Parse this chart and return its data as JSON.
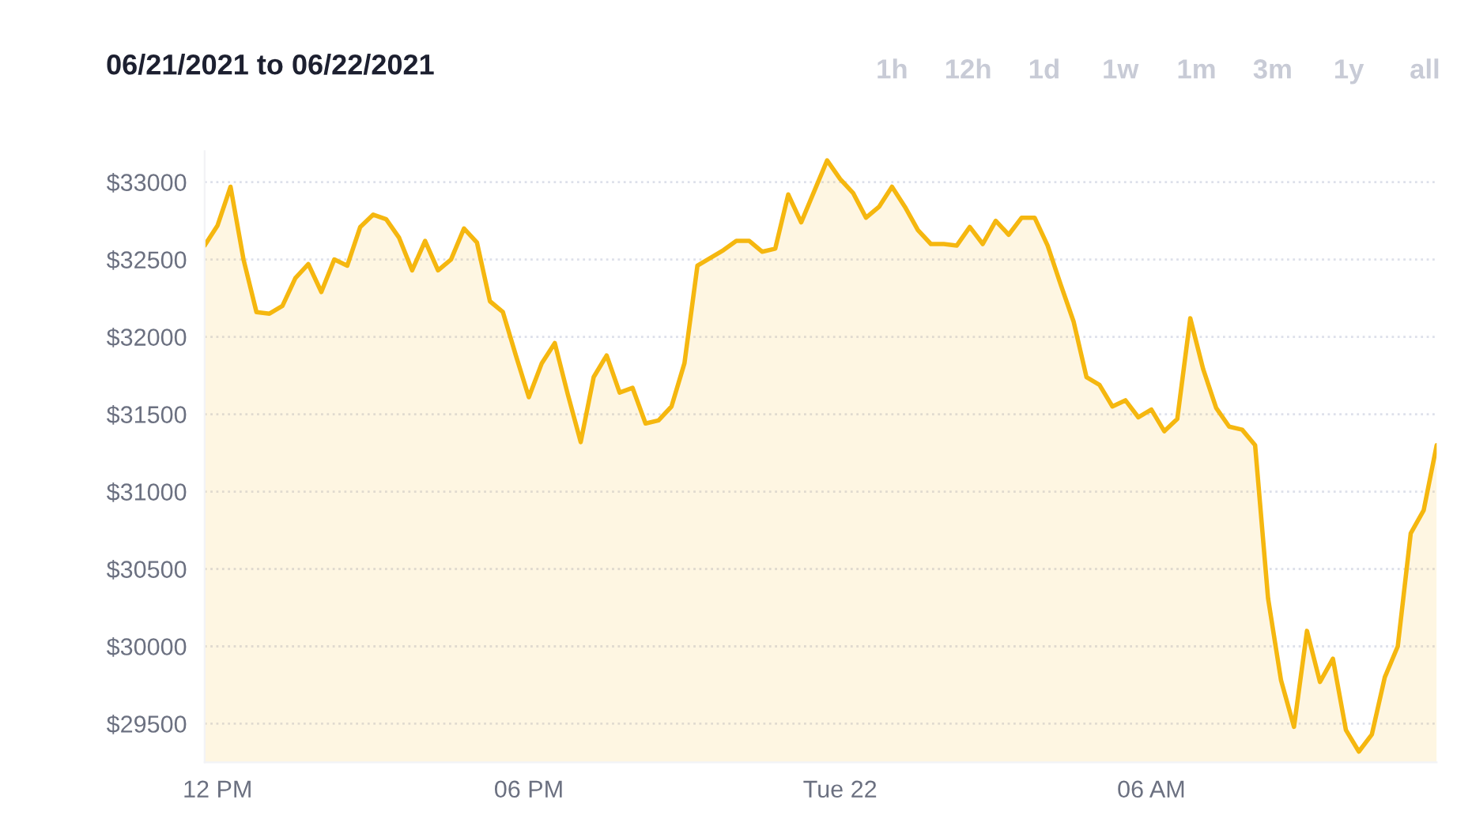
{
  "chart_data": {
    "type": "area",
    "title": "06/21/2021 to 06/22/2021",
    "annotations": [
      "1h",
      "12h",
      "1d",
      "1w",
      "1m",
      "3m",
      "1y",
      "all"
    ],
    "x": [
      "2021-06-21T11:45",
      "2021-06-21T12:00",
      "2021-06-21T12:15",
      "2021-06-21T12:30",
      "2021-06-21T12:45",
      "2021-06-21T13:00",
      "2021-06-21T13:15",
      "2021-06-21T13:30",
      "2021-06-21T13:45",
      "2021-06-21T14:00",
      "2021-06-21T14:15",
      "2021-06-21T14:30",
      "2021-06-21T14:45",
      "2021-06-21T15:00",
      "2021-06-21T15:15",
      "2021-06-21T15:30",
      "2021-06-21T15:45",
      "2021-06-21T16:00",
      "2021-06-21T16:15",
      "2021-06-21T16:30",
      "2021-06-21T16:45",
      "2021-06-21T17:00",
      "2021-06-21T17:15",
      "2021-06-21T17:30",
      "2021-06-21T17:45",
      "2021-06-21T18:00",
      "2021-06-21T18:15",
      "2021-06-21T18:30",
      "2021-06-21T18:45",
      "2021-06-21T19:00",
      "2021-06-21T19:15",
      "2021-06-21T19:30",
      "2021-06-21T19:45",
      "2021-06-21T20:00",
      "2021-06-21T20:15",
      "2021-06-21T20:30",
      "2021-06-21T20:45",
      "2021-06-21T21:00",
      "2021-06-21T21:15",
      "2021-06-21T21:30",
      "2021-06-21T21:45",
      "2021-06-21T22:00",
      "2021-06-21T22:15",
      "2021-06-21T22:30",
      "2021-06-21T22:45",
      "2021-06-21T23:00",
      "2021-06-21T23:15",
      "2021-06-21T23:30",
      "2021-06-21T23:45",
      "2021-06-22T00:00",
      "2021-06-22T00:15",
      "2021-06-22T00:30",
      "2021-06-22T00:45",
      "2021-06-22T01:00",
      "2021-06-22T01:15",
      "2021-06-22T01:30",
      "2021-06-22T01:45",
      "2021-06-22T02:00",
      "2021-06-22T02:15",
      "2021-06-22T02:30",
      "2021-06-22T02:45",
      "2021-06-22T03:00",
      "2021-06-22T03:15",
      "2021-06-22T03:30",
      "2021-06-22T03:45",
      "2021-06-22T04:00",
      "2021-06-22T04:15",
      "2021-06-22T04:30",
      "2021-06-22T04:45",
      "2021-06-22T05:00",
      "2021-06-22T05:15",
      "2021-06-22T05:30",
      "2021-06-22T05:45",
      "2021-06-22T06:00",
      "2021-06-22T06:15",
      "2021-06-22T06:30",
      "2021-06-22T06:45",
      "2021-06-22T07:00",
      "2021-06-22T07:15",
      "2021-06-22T07:30",
      "2021-06-22T07:45",
      "2021-06-22T08:00",
      "2021-06-22T08:15",
      "2021-06-22T08:30",
      "2021-06-22T08:45",
      "2021-06-22T09:00",
      "2021-06-22T09:15",
      "2021-06-22T09:30",
      "2021-06-22T09:45",
      "2021-06-22T10:00",
      "2021-06-22T10:15",
      "2021-06-22T10:30",
      "2021-06-22T10:45",
      "2021-06-22T11:00",
      "2021-06-22T11:15",
      "2021-06-22T11:30"
    ],
    "series": [
      {
        "color": "#f5b70f",
        "values": [
          32590,
          32720,
          32970,
          32500,
          32160,
          32150,
          32200,
          32380,
          32470,
          32290,
          32500,
          32460,
          32710,
          32790,
          32760,
          32640,
          32430,
          32620,
          32430,
          32500,
          32700,
          32610,
          32230,
          32160,
          31880,
          31610,
          31830,
          31960,
          31630,
          31320,
          31740,
          31880,
          31640,
          31670,
          31440,
          31460,
          31550,
          31830,
          32460,
          32510,
          32560,
          32620,
          32620,
          32550,
          32570,
          32920,
          32740,
          32940,
          33140,
          33020,
          32930,
          32770,
          32840,
          32970,
          32840,
          32690,
          32600,
          32600,
          32590,
          32710,
          32600,
          32750,
          32660,
          32770,
          32770,
          32590,
          32340,
          32100,
          31740,
          31690,
          31550,
          31590,
          31480,
          31530,
          31390,
          31470,
          32120,
          31790,
          31540,
          31420,
          31400,
          31300,
          30310,
          29780,
          29480,
          30100,
          29770,
          29920,
          29460,
          29320,
          29430,
          29800,
          30000,
          30730,
          30880,
          31300
        ]
      }
    ],
    "xlim": [
      "2021-06-21T11:45",
      "2021-06-22T11:30"
    ],
    "xticks": [
      {
        "value": "2021-06-21T12:00",
        "label": "12 PM"
      },
      {
        "value": "2021-06-21T18:00",
        "label": "06 PM"
      },
      {
        "value": "2021-06-22T00:00",
        "label": "Tue 22"
      },
      {
        "value": "2021-06-22T06:00",
        "label": "06 AM"
      }
    ],
    "ylim": [
      29250,
      33200
    ],
    "yticks": [
      {
        "value": 29500,
        "label": "$29500"
      },
      {
        "value": 30000,
        "label": "$30000"
      },
      {
        "value": 30500,
        "label": "$30500"
      },
      {
        "value": 31000,
        "label": "$31000"
      },
      {
        "value": 31500,
        "label": "$31500"
      },
      {
        "value": 32000,
        "label": "$32000"
      },
      {
        "value": 32500,
        "label": "$32500"
      },
      {
        "value": 33000,
        "label": "$33000"
      }
    ],
    "grid": "y",
    "legend": false,
    "marker": "none",
    "line_style": "solid"
  }
}
